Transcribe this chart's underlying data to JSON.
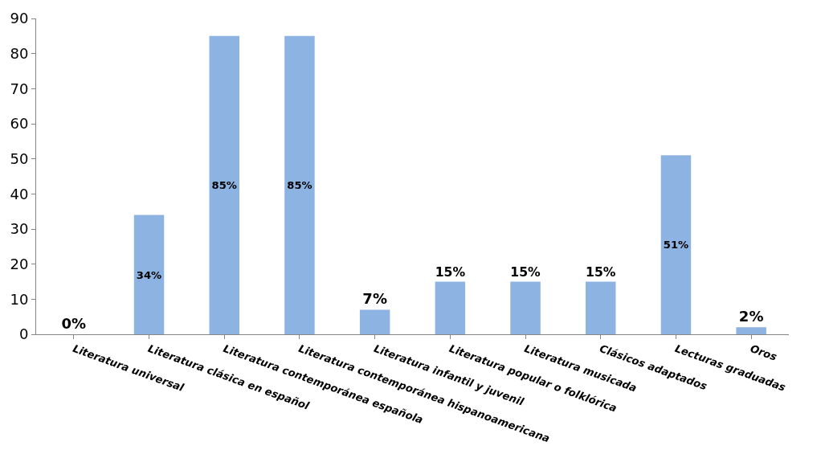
{
  "chart_data": {
    "type": "bar",
    "categories": [
      "Literatura universal",
      "Literatura clásica en español",
      "Literatura contemporánea española",
      "Literatura contemporánea hispanoamericana",
      "Literatura infantil y juvenil",
      "Literatura popular o folklórica",
      "Literatura musicada",
      "Clásicos adaptados",
      "Lecturas graduadas",
      "Oros"
    ],
    "values": [
      0,
      34,
      85,
      85,
      7,
      15,
      15,
      15,
      51,
      2
    ],
    "value_labels": [
      "0%",
      "34%",
      "85%",
      "85%",
      "7%",
      "15%",
      "15%",
      "15%",
      "51%",
      "2%"
    ],
    "color": "#8db3e2",
    "ylim": [
      0,
      90
    ],
    "yticks": [
      0,
      10,
      20,
      30,
      40,
      50,
      60,
      70,
      80,
      90
    ]
  }
}
